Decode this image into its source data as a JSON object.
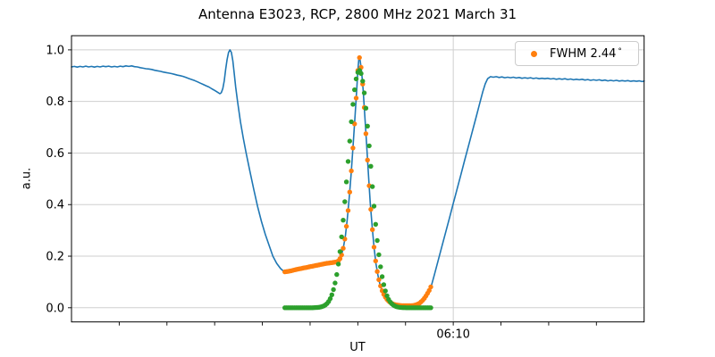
{
  "title": "Antenna E3023, RCP, 2800 MHz 2021 March 31",
  "axes": {
    "xlabel": "UT",
    "ylabel": "a.u."
  },
  "legend": {
    "label": "FWHM 2.44",
    "degree": "°",
    "marker_color": "#ff7f0e"
  },
  "colors": {
    "scan": "#1f77b4",
    "window": "#ff7f0e",
    "fit": "#2ca02c",
    "grid": "#cfcfcf",
    "spine": "#000000"
  },
  "chart_data": {
    "type": "line",
    "title": "Antenna E3023, RCP, 2800 MHz 2021 March 31",
    "xlabel": "UT",
    "ylabel": "a.u.",
    "x_axis": {
      "unit": "minutes since 00:00 UT",
      "min": 330,
      "max": 390,
      "major_ticks": [
        {
          "t": 370,
          "label": "06:10"
        }
      ],
      "minor_ticks": [
        335,
        340,
        345,
        350,
        355,
        360,
        365,
        375,
        380,
        385
      ],
      "grid_on_major_only": true
    },
    "y_axis": {
      "min": -0.055,
      "max": 1.055,
      "tick_values": [
        0.0,
        0.2,
        0.4,
        0.6,
        0.8,
        1.0
      ],
      "tick_labels": [
        "0.0",
        "0.2",
        "0.4",
        "0.6",
        "0.8",
        "1.0"
      ],
      "grid": true
    },
    "series": [
      {
        "name": "drift-scan",
        "type": "line",
        "color": "#1f77b4",
        "points": [
          [
            330.0,
            0.934
          ],
          [
            330.3,
            0.936
          ],
          [
            330.6,
            0.933
          ],
          [
            330.9,
            0.936
          ],
          [
            331.2,
            0.934
          ],
          [
            331.5,
            0.937
          ],
          [
            331.8,
            0.934
          ],
          [
            332.1,
            0.936
          ],
          [
            332.4,
            0.933
          ],
          [
            332.7,
            0.936
          ],
          [
            333.0,
            0.934
          ],
          [
            333.3,
            0.937
          ],
          [
            333.6,
            0.935
          ],
          [
            333.9,
            0.937
          ],
          [
            334.2,
            0.934
          ],
          [
            334.5,
            0.936
          ],
          [
            334.8,
            0.934
          ],
          [
            335.1,
            0.937
          ],
          [
            335.4,
            0.935
          ],
          [
            335.7,
            0.938
          ],
          [
            336.0,
            0.936
          ],
          [
            336.3,
            0.938
          ],
          [
            336.6,
            0.935
          ],
          [
            336.9,
            0.934
          ],
          [
            337.2,
            0.931
          ],
          [
            337.5,
            0.929
          ],
          [
            337.8,
            0.927
          ],
          [
            338.1,
            0.926
          ],
          [
            338.4,
            0.924
          ],
          [
            338.7,
            0.921
          ],
          [
            339.0,
            0.919
          ],
          [
            339.3,
            0.917
          ],
          [
            339.6,
            0.914
          ],
          [
            339.9,
            0.912
          ],
          [
            340.2,
            0.91
          ],
          [
            340.5,
            0.908
          ],
          [
            340.8,
            0.905
          ],
          [
            341.1,
            0.902
          ],
          [
            341.4,
            0.9
          ],
          [
            341.7,
            0.897
          ],
          [
            342.0,
            0.893
          ],
          [
            342.3,
            0.889
          ],
          [
            342.6,
            0.885
          ],
          [
            342.9,
            0.881
          ],
          [
            343.2,
            0.876
          ],
          [
            343.5,
            0.871
          ],
          [
            343.8,
            0.866
          ],
          [
            344.1,
            0.861
          ],
          [
            344.4,
            0.856
          ],
          [
            344.7,
            0.849
          ],
          [
            345.0,
            0.843
          ],
          [
            345.3,
            0.836
          ],
          [
            345.55,
            0.83
          ],
          [
            345.7,
            0.834
          ],
          [
            345.85,
            0.85
          ],
          [
            346.0,
            0.88
          ],
          [
            346.15,
            0.925
          ],
          [
            346.3,
            0.963
          ],
          [
            346.45,
            0.99
          ],
          [
            346.6,
            1.0
          ],
          [
            346.75,
            0.99
          ],
          [
            346.9,
            0.958
          ],
          [
            347.05,
            0.908
          ],
          [
            347.2,
            0.856
          ],
          [
            347.4,
            0.8
          ],
          [
            347.7,
            0.722
          ],
          [
            348.0,
            0.658
          ],
          [
            348.3,
            0.6
          ],
          [
            348.7,
            0.528
          ],
          [
            349.1,
            0.458
          ],
          [
            349.5,
            0.393
          ],
          [
            349.9,
            0.335
          ],
          [
            350.3,
            0.285
          ],
          [
            350.7,
            0.243
          ],
          [
            351.1,
            0.2
          ],
          [
            351.5,
            0.172
          ],
          [
            351.9,
            0.152
          ],
          [
            352.3,
            0.139
          ],
          [
            352.7,
            0.141
          ],
          [
            353.1,
            0.144
          ],
          [
            353.5,
            0.148
          ],
          [
            353.9,
            0.151
          ],
          [
            354.3,
            0.154
          ],
          [
            354.7,
            0.157
          ],
          [
            355.1,
            0.16
          ],
          [
            355.5,
            0.163
          ],
          [
            355.9,
            0.166
          ],
          [
            356.3,
            0.169
          ],
          [
            356.7,
            0.172
          ],
          [
            357.1,
            0.174
          ],
          [
            357.5,
            0.176
          ],
          [
            357.9,
            0.179
          ],
          [
            358.1,
            0.188
          ],
          [
            358.3,
            0.205
          ],
          [
            358.5,
            0.235
          ],
          [
            358.7,
            0.28
          ],
          [
            358.9,
            0.345
          ],
          [
            359.1,
            0.425
          ],
          [
            359.3,
            0.52
          ],
          [
            359.5,
            0.625
          ],
          [
            359.7,
            0.735
          ],
          [
            359.9,
            0.855
          ],
          [
            360.0,
            0.92
          ],
          [
            360.1,
            0.962
          ],
          [
            360.17,
            0.97
          ],
          [
            360.25,
            0.958
          ],
          [
            360.4,
            0.915
          ],
          [
            360.55,
            0.85
          ],
          [
            360.7,
            0.765
          ],
          [
            360.9,
            0.645
          ],
          [
            361.1,
            0.525
          ],
          [
            361.3,
            0.41
          ],
          [
            361.5,
            0.315
          ],
          [
            361.7,
            0.235
          ],
          [
            361.9,
            0.172
          ],
          [
            362.1,
            0.127
          ],
          [
            362.3,
            0.094
          ],
          [
            362.5,
            0.07
          ],
          [
            362.8,
            0.046
          ],
          [
            363.1,
            0.03
          ],
          [
            363.4,
            0.02
          ],
          [
            363.8,
            0.013
          ],
          [
            364.2,
            0.01
          ],
          [
            364.7,
            0.008
          ],
          [
            365.2,
            0.008
          ],
          [
            365.7,
            0.008
          ],
          [
            366.1,
            0.011
          ],
          [
            366.5,
            0.018
          ],
          [
            366.9,
            0.033
          ],
          [
            367.2,
            0.049
          ],
          [
            367.5,
            0.068
          ],
          [
            367.7,
            0.085
          ],
          [
            368.0,
            0.125
          ],
          [
            368.4,
            0.18
          ],
          [
            368.8,
            0.236
          ],
          [
            369.2,
            0.292
          ],
          [
            369.6,
            0.348
          ],
          [
            370.0,
            0.404
          ],
          [
            370.4,
            0.46
          ],
          [
            370.8,
            0.516
          ],
          [
            371.2,
            0.572
          ],
          [
            371.6,
            0.628
          ],
          [
            372.0,
            0.684
          ],
          [
            372.4,
            0.74
          ],
          [
            372.8,
            0.796
          ],
          [
            373.1,
            0.838
          ],
          [
            373.35,
            0.868
          ],
          [
            373.6,
            0.888
          ],
          [
            373.9,
            0.896
          ],
          [
            374.2,
            0.894
          ],
          [
            374.5,
            0.896
          ],
          [
            374.8,
            0.893
          ],
          [
            375.1,
            0.895
          ],
          [
            375.4,
            0.892
          ],
          [
            375.7,
            0.894
          ],
          [
            376.0,
            0.892
          ],
          [
            376.3,
            0.894
          ],
          [
            376.6,
            0.891
          ],
          [
            376.9,
            0.893
          ],
          [
            377.2,
            0.89
          ],
          [
            377.5,
            0.892
          ],
          [
            377.8,
            0.89
          ],
          [
            378.1,
            0.892
          ],
          [
            378.4,
            0.889
          ],
          [
            378.7,
            0.891
          ],
          [
            379.0,
            0.888
          ],
          [
            379.3,
            0.89
          ],
          [
            379.6,
            0.888
          ],
          [
            379.9,
            0.89
          ],
          [
            380.2,
            0.887
          ],
          [
            380.5,
            0.889
          ],
          [
            380.8,
            0.886
          ],
          [
            381.1,
            0.888
          ],
          [
            381.4,
            0.886
          ],
          [
            381.7,
            0.888
          ],
          [
            382.0,
            0.885
          ],
          [
            382.3,
            0.887
          ],
          [
            382.6,
            0.884
          ],
          [
            382.9,
            0.886
          ],
          [
            383.2,
            0.884
          ],
          [
            383.5,
            0.886
          ],
          [
            383.8,
            0.883
          ],
          [
            384.1,
            0.885
          ],
          [
            384.4,
            0.882
          ],
          [
            384.7,
            0.884
          ],
          [
            385.0,
            0.882
          ],
          [
            385.3,
            0.884
          ],
          [
            385.6,
            0.881
          ],
          [
            385.9,
            0.883
          ],
          [
            386.2,
            0.88
          ],
          [
            386.5,
            0.882
          ],
          [
            386.8,
            0.88
          ],
          [
            387.1,
            0.882
          ],
          [
            387.4,
            0.879
          ],
          [
            387.7,
            0.881
          ],
          [
            388.0,
            0.879
          ],
          [
            388.3,
            0.881
          ],
          [
            388.6,
            0.878
          ],
          [
            388.9,
            0.88
          ],
          [
            389.2,
            0.878
          ],
          [
            389.5,
            0.88
          ],
          [
            389.8,
            0.877
          ],
          [
            390.0,
            0.879
          ]
        ]
      },
      {
        "name": "fit-window-samples",
        "type": "scatter",
        "color": "#ff7f0e",
        "legend_label": "FWHM 2.44°",
        "marker_diameter_px": 5.4,
        "sampled_from": "drift-scan",
        "t_start": 352.35,
        "t_end": 367.7,
        "dt": 0.17
      },
      {
        "name": "gaussian-fit",
        "type": "scatter",
        "color": "#2ca02c",
        "marker_diameter_px": 5.4,
        "gaussian": {
          "amplitude": 0.92,
          "center": 360.15,
          "sigma": 1.19
        },
        "t_start": 352.35,
        "t_end": 367.7,
        "dt": 0.17
      }
    ]
  }
}
